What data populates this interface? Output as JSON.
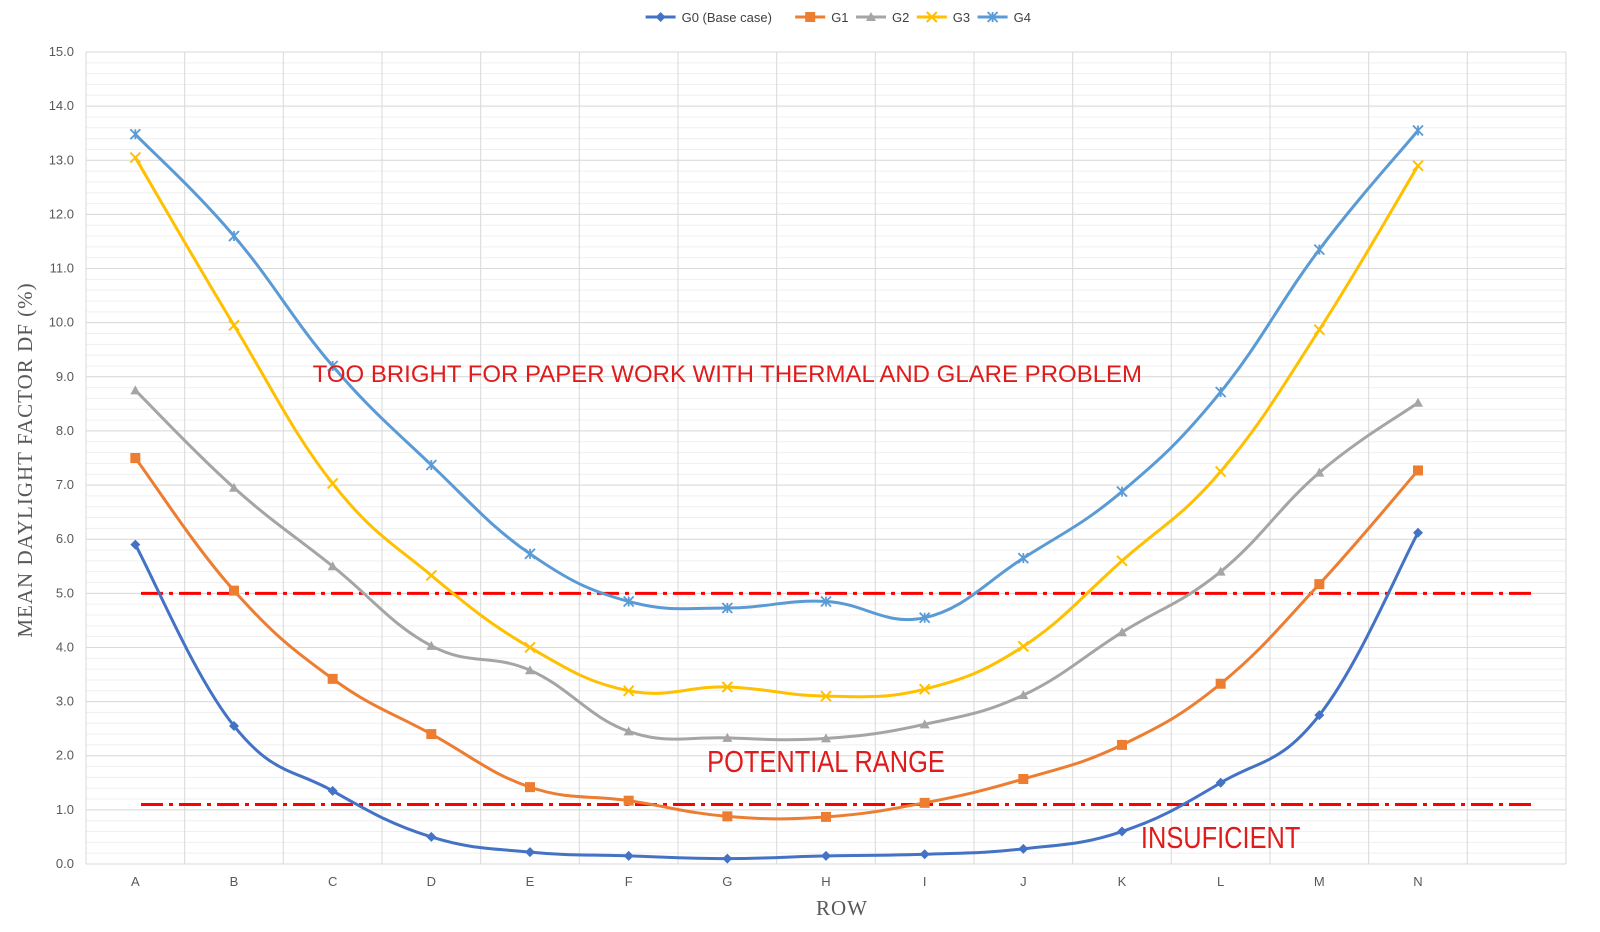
{
  "chart_data": {
    "type": "line",
    "xlabel": "ROW",
    "ylabel": "MEAN DAYLIGHT FACTOR DF (%)",
    "ylim": [
      0,
      15
    ],
    "ytick_step": 1.0,
    "ytick_format_decimals": 1,
    "grid": true,
    "legend_position": "top",
    "categories": [
      "A",
      "B",
      "C",
      "D",
      "E",
      "F",
      "G",
      "H",
      "I",
      "J",
      "K",
      "L",
      "M",
      "N"
    ],
    "series": [
      {
        "name": "G0 (Base case)",
        "color": "#4472c4",
        "marker": "diamond",
        "values": [
          5.9,
          2.55,
          1.35,
          0.5,
          0.22,
          0.15,
          0.1,
          0.15,
          0.18,
          0.28,
          0.6,
          1.5,
          2.75,
          6.12
        ]
      },
      {
        "name": "G1",
        "color": "#ed7d31",
        "marker": "square",
        "values": [
          7.5,
          5.05,
          3.42,
          2.4,
          1.42,
          1.17,
          0.88,
          0.87,
          1.13,
          1.57,
          2.2,
          3.33,
          5.17,
          7.27
        ]
      },
      {
        "name": "G2",
        "color": "#a5a5a5",
        "marker": "triangle",
        "values": [
          8.75,
          6.95,
          5.5,
          4.03,
          3.58,
          2.45,
          2.33,
          2.32,
          2.58,
          3.12,
          4.28,
          5.4,
          7.23,
          8.52
        ]
      },
      {
        "name": "G3",
        "color": "#ffc000",
        "marker": "x",
        "values": [
          13.05,
          9.95,
          7.03,
          5.33,
          4.0,
          3.2,
          3.27,
          3.1,
          3.23,
          4.02,
          5.6,
          7.25,
          9.87,
          12.9
        ]
      },
      {
        "name": "G4",
        "color": "#5b9bd5",
        "marker": "star",
        "values": [
          13.48,
          11.6,
          9.2,
          7.37,
          5.73,
          4.85,
          4.73,
          4.85,
          4.55,
          5.65,
          6.88,
          8.72,
          11.35,
          13.55
        ]
      }
    ],
    "reference_lines": [
      {
        "value": 5.0,
        "color": "#ff0000",
        "style": "dash-dot"
      },
      {
        "value": 1.1,
        "color": "#ff0000",
        "style": "dash-dot"
      }
    ],
    "annotations": [
      {
        "text": "TOO BRIGHT FOR PAPER WORK WITH THERMAL AND GLARE PROBLEM",
        "x": "G",
        "y": 8.9,
        "size": "medium"
      },
      {
        "text": "POTENTIAL RANGE",
        "x": "H",
        "y": 1.7,
        "size": "large"
      },
      {
        "text": "INSUFICIENT",
        "x": "L",
        "y": 0.3,
        "size": "large"
      }
    ]
  }
}
